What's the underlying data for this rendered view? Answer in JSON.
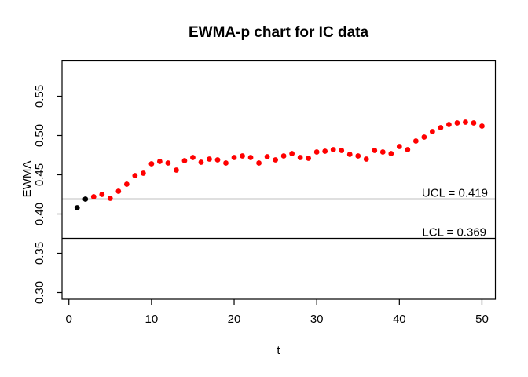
{
  "title": "EWMA-p chart for IC data",
  "chart_data": {
    "type": "scatter",
    "title": "EWMA-p chart for IC data",
    "xlabel": "t",
    "ylabel": "EWMA",
    "x_ticks": [
      "0",
      "10",
      "20",
      "30",
      "40",
      "50"
    ],
    "y_ticks": [
      "0.30",
      "0.35",
      "0.40",
      "0.45",
      "0.50",
      "0.55"
    ],
    "xlim": [
      -0.83,
      51.62
    ],
    "ylim": [
      0.2915,
      0.595
    ],
    "grid": false,
    "legend": "none",
    "x": [
      1,
      2,
      3,
      4,
      5,
      6,
      7,
      8,
      9,
      10,
      11,
      12,
      13,
      14,
      15,
      16,
      17,
      18,
      19,
      20,
      21,
      22,
      23,
      24,
      25,
      26,
      27,
      28,
      29,
      30,
      31,
      32,
      33,
      34,
      35,
      36,
      37,
      38,
      39,
      40,
      41,
      42,
      43,
      44,
      45,
      46,
      47,
      48,
      49,
      50
    ],
    "series": [
      {
        "name": "EWMA",
        "values": [
          0.408,
          0.419,
          0.422,
          0.425,
          0.42,
          0.429,
          0.438,
          0.449,
          0.452,
          0.464,
          0.467,
          0.465,
          0.456,
          0.468,
          0.472,
          0.466,
          0.47,
          0.469,
          0.465,
          0.472,
          0.474,
          0.472,
          0.465,
          0.473,
          0.469,
          0.474,
          0.477,
          0.472,
          0.471,
          0.479,
          0.48,
          0.482,
          0.481,
          0.476,
          0.474,
          0.47,
          0.481,
          0.479,
          0.477,
          0.486,
          0.482,
          0.493,
          0.498,
          0.505,
          0.51,
          0.514,
          0.516,
          0.517,
          0.516,
          0.512
        ]
      }
    ],
    "start_black_points": 2,
    "ucl": {
      "value": 0.419,
      "label": "UCL = 0.419"
    },
    "lcl": {
      "value": 0.369,
      "label": "LCL = 0.369"
    },
    "colors": {
      "point": "#ff0000",
      "start_point": "#000000",
      "line": "#000000",
      "background": "#ffffff"
    }
  }
}
